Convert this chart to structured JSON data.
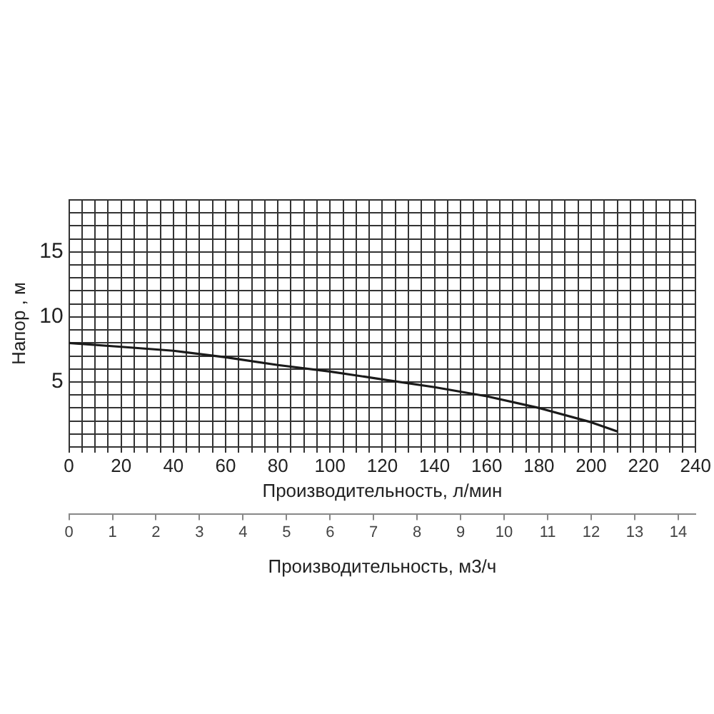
{
  "chart_data": {
    "type": "line",
    "xlabel": "Производительность, л/мин",
    "ylabel": "Напор , м",
    "x2label": "Производительность, м3/ч",
    "xlim": [
      0,
      240
    ],
    "xticks": [
      0,
      {
        "value": 5,
        "label": null
      },
      {
        "value": 10,
        "label": null
      },
      {
        "value": 15,
        "label": null
      },
      20,
      {
        "value": 25,
        "label": null
      },
      {
        "value": 30,
        "label": null
      },
      {
        "value": 35,
        "label": null
      },
      40,
      {
        "value": 45,
        "label": null
      },
      {
        "value": 50,
        "label": null
      },
      {
        "value": 55,
        "label": null
      },
      60,
      {
        "value": 65,
        "label": null
      },
      {
        "value": 70,
        "label": null
      },
      {
        "value": 75,
        "label": null
      },
      80,
      {
        "value": 85,
        "label": null
      },
      {
        "value": 90,
        "label": null
      },
      {
        "value": 95,
        "label": null
      },
      100,
      {
        "value": 105,
        "label": null
      },
      {
        "value": 110,
        "label": null
      },
      {
        "value": 115,
        "label": null
      },
      120,
      {
        "value": 125,
        "label": null
      },
      {
        "value": 130,
        "label": null
      },
      {
        "value": 135,
        "label": null
      },
      140,
      {
        "value": 145,
        "label": null
      },
      {
        "value": 150,
        "label": null
      },
      {
        "value": 155,
        "label": null
      },
      160,
      {
        "value": 165,
        "label": null
      },
      {
        "value": 170,
        "label": null
      },
      {
        "value": 175,
        "label": null
      },
      180,
      {
        "value": 185,
        "label": null
      },
      {
        "value": 190,
        "label": null
      },
      {
        "value": 195,
        "label": null
      },
      200,
      {
        "value": 205,
        "label": null
      },
      {
        "value": 210,
        "label": null
      },
      {
        "value": 215,
        "label": null
      },
      220,
      {
        "value": 225,
        "label": null
      },
      {
        "value": 230,
        "label": null
      },
      {
        "value": 235,
        "label": null
      },
      240
    ],
    "ylim": [
      0,
      19
    ],
    "yticks": [
      {
        "value": 0,
        "label": null
      },
      {
        "value": 1,
        "label": null
      },
      {
        "value": 2,
        "label": null
      },
      {
        "value": 3,
        "label": null
      },
      {
        "value": 4,
        "label": null
      },
      5,
      {
        "value": 6,
        "label": null
      },
      {
        "value": 7,
        "label": null
      },
      {
        "value": 8,
        "label": null
      },
      {
        "value": 9,
        "label": null
      },
      10,
      {
        "value": 11,
        "label": null
      },
      {
        "value": 12,
        "label": null
      },
      {
        "value": 13,
        "label": null
      },
      {
        "value": 14,
        "label": null
      },
      15,
      {
        "value": 16,
        "label": null
      },
      {
        "value": 17,
        "label": null
      },
      {
        "value": 18,
        "label": null
      },
      {
        "value": 19,
        "label": null
      }
    ],
    "x2lim": [
      0,
      14.4
    ],
    "x2ticks": [
      0,
      1,
      2,
      3,
      4,
      5,
      6,
      7,
      8,
      9,
      10,
      11,
      12,
      13,
      14
    ],
    "grid": true,
    "legend": false,
    "marker": "none",
    "line_style": "solid",
    "series": [
      {
        "color": "#1a1a1a",
        "x": [
          0,
          20,
          40,
          60,
          80,
          100,
          120,
          140,
          160,
          180,
          200,
          210
        ],
        "values": [
          8,
          7.7,
          7.4,
          6.9,
          6.3,
          5.8,
          5.2,
          4.6,
          3.9,
          3,
          1.9,
          1.2
        ]
      }
    ]
  }
}
